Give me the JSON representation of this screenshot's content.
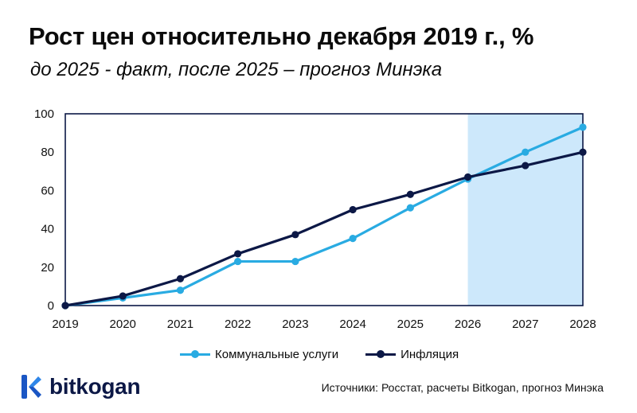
{
  "header": {
    "title": "Рост цен относительно декабря 2019 г., %",
    "subtitle": "до 2025 - факт, после 2025 – прогноз Минэка"
  },
  "chart_data": {
    "type": "line",
    "x": [
      "2019",
      "2020",
      "2021",
      "2022",
      "2023",
      "2024",
      "2025",
      "2026",
      "2027",
      "2028"
    ],
    "ylim": [
      0,
      100
    ],
    "yticks": [
      0,
      20,
      40,
      60,
      80,
      100
    ],
    "grid": false,
    "legend_position": "bottom",
    "forecast_shaded_range": [
      "2026",
      "2028"
    ],
    "series": [
      {
        "name": "Коммунальные услуги",
        "color": "#29abe2",
        "values": [
          0,
          4,
          8,
          23,
          23,
          35,
          51,
          66,
          80,
          93
        ]
      },
      {
        "name": "Инфляция",
        "color": "#0c1846",
        "values": [
          0,
          5,
          14,
          27,
          37,
          50,
          58,
          67,
          73,
          80
        ]
      }
    ],
    "colors": {
      "axis": "#0c1846",
      "forecast_fill": "#cde8fb"
    }
  },
  "legend": {
    "items": [
      "Коммунальные услуги",
      "Инфляция"
    ]
  },
  "footer": {
    "logo_text": "bitkogan",
    "logo_icon": "bitkogan-k-logo-icon",
    "source": "Источники: Росстат, расчеты Bitkogan, прогноз Минэка"
  }
}
